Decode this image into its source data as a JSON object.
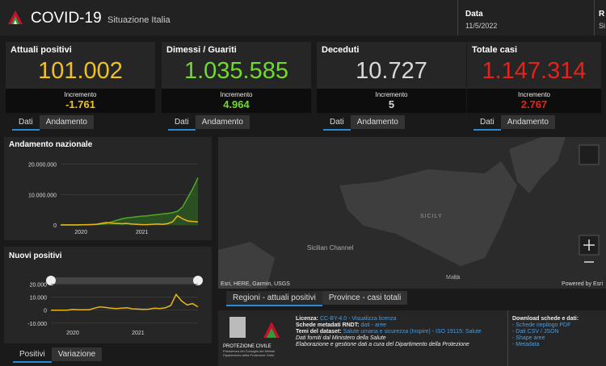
{
  "header": {
    "title": "COVID-19",
    "subtitle": "Situazione Italia",
    "date_label": "Data",
    "date": "11/5/2022",
    "cut_label": "R",
    "cut_value": "Si"
  },
  "cards": [
    {
      "title": "Attuali positivi",
      "value": "101.002",
      "increment_label": "Incremento",
      "increment": "-1.761",
      "color": "#f2c21b",
      "tabs": [
        "Dati",
        "Andamento"
      ]
    },
    {
      "title": "Dimessi / Guariti",
      "value": "1.035.585",
      "increment_label": "Incremento",
      "increment": "4.964",
      "color": "#6fdc2a",
      "tabs": [
        "Dati",
        "Andamento"
      ]
    },
    {
      "title": "Deceduti",
      "value": "10.727",
      "increment_label": "Incremento",
      "increment": "5",
      "color": "#d9d9d9",
      "tabs": [
        "Dati",
        "Andamento"
      ]
    },
    {
      "title": "Totale casi",
      "value": "1.147.314",
      "increment_label": "Incremento",
      "increment": "2.767",
      "color": "#e3241b",
      "tabs": [
        "Dati",
        "Andamento"
      ]
    }
  ],
  "charts": [
    {
      "type": "line",
      "title": "Andamento nazionale",
      "categories": [
        null,
        null,
        null,
        null,
        "2020",
        null,
        null,
        null,
        null,
        null,
        null,
        null,
        null,
        null,
        null,
        null,
        "2021",
        null,
        null,
        null,
        null,
        null,
        null,
        null,
        null,
        null,
        null,
        null
      ],
      "series": [
        {
          "color": "#4fa82a",
          "values": [
            0,
            0,
            0,
            0,
            50000,
            100000,
            150000,
            200000,
            300000,
            500000,
            1000000,
            1500000,
            2000000,
            2300000,
            2500000,
            2700000,
            2900000,
            3000000,
            3200000,
            3400000,
            3600000,
            3800000,
            4000000,
            4500000,
            6000000,
            9000000,
            12000000,
            15500000
          ]
        },
        {
          "color": "#e8b616",
          "values": [
            0,
            0,
            0,
            0,
            20000,
            50000,
            100000,
            200000,
            500000,
            800000,
            600000,
            500000,
            400000,
            500000,
            300000,
            200000,
            100000,
            100000,
            200000,
            300000,
            200000,
            400000,
            1000000,
            3000000,
            2000000,
            1300000,
            1100000,
            1000000
          ]
        }
      ],
      "ylim": [
        0,
        22000000
      ],
      "yticks": [
        0,
        {
          "value": 10000000,
          "label": "10.000.000"
        },
        {
          "value": 20000000,
          "label": "20.000.000"
        }
      ]
    },
    {
      "type": "line",
      "title": "Nuovi positivi",
      "categories": [
        null,
        null,
        null,
        null,
        "2020",
        null,
        null,
        null,
        null,
        null,
        null,
        null,
        null,
        null,
        null,
        null,
        "2021",
        null,
        null,
        null,
        null,
        null,
        null,
        null,
        null,
        null,
        null,
        null
      ],
      "series": [
        {
          "color": "#e8b616",
          "values": [
            0,
            0,
            0,
            0,
            500,
            300,
            200,
            300,
            1500,
            2500,
            2000,
            1500,
            1200,
            1500,
            1800,
            1000,
            800,
            600,
            700,
            1500,
            1200,
            1800,
            3500,
            12000,
            7000,
            4000,
            5000,
            2500
          ]
        }
      ],
      "ylim": [
        -12000,
        24000
      ],
      "yticks": [
        {
          "value": -10000,
          "label": "-10.000"
        },
        0,
        {
          "value": 10000,
          "label": "10.000"
        },
        {
          "value": 20000,
          "label": "20.000"
        }
      ]
    }
  ],
  "chart_tabs": [
    "Positivi",
    "Variazione"
  ],
  "map": {
    "region": "SICILY",
    "sea": "Sicilian Channel",
    "island": "Malta",
    "attribution": "Esri, HERE, Garmin, USGS",
    "powered": "Powered by Esri",
    "tabs": [
      "Regioni - attuali positivi",
      "Province - casi totali"
    ]
  },
  "footer": {
    "logo": [
      "PROTEZIONE CIVILE",
      "Presidenza del Consiglio dei Ministri",
      "Dipartimento della Protezione Civile"
    ],
    "lines": [
      {
        "label": "Licenza:",
        "link": "CC-BY-4.0 - Visualizza licenza"
      },
      {
        "label": "Schede metadati RNDT:",
        "link": "dati - aree"
      },
      {
        "label": "Temi del dataset:",
        "link": "Salute umana e sicurezza (Inspire) - ISO 19115: Salute"
      }
    ],
    "notes": [
      "Dati forniti dal Ministero della Salute",
      "Elaborazione e gestione dati a cura del Dipartimento della Protezione"
    ],
    "download_title": "Download schede e dati:",
    "downloads": [
      "- Schede riepilogo PDF",
      "- Dati CSV / JSON",
      "- Shape aree",
      "- Metadata"
    ]
  }
}
